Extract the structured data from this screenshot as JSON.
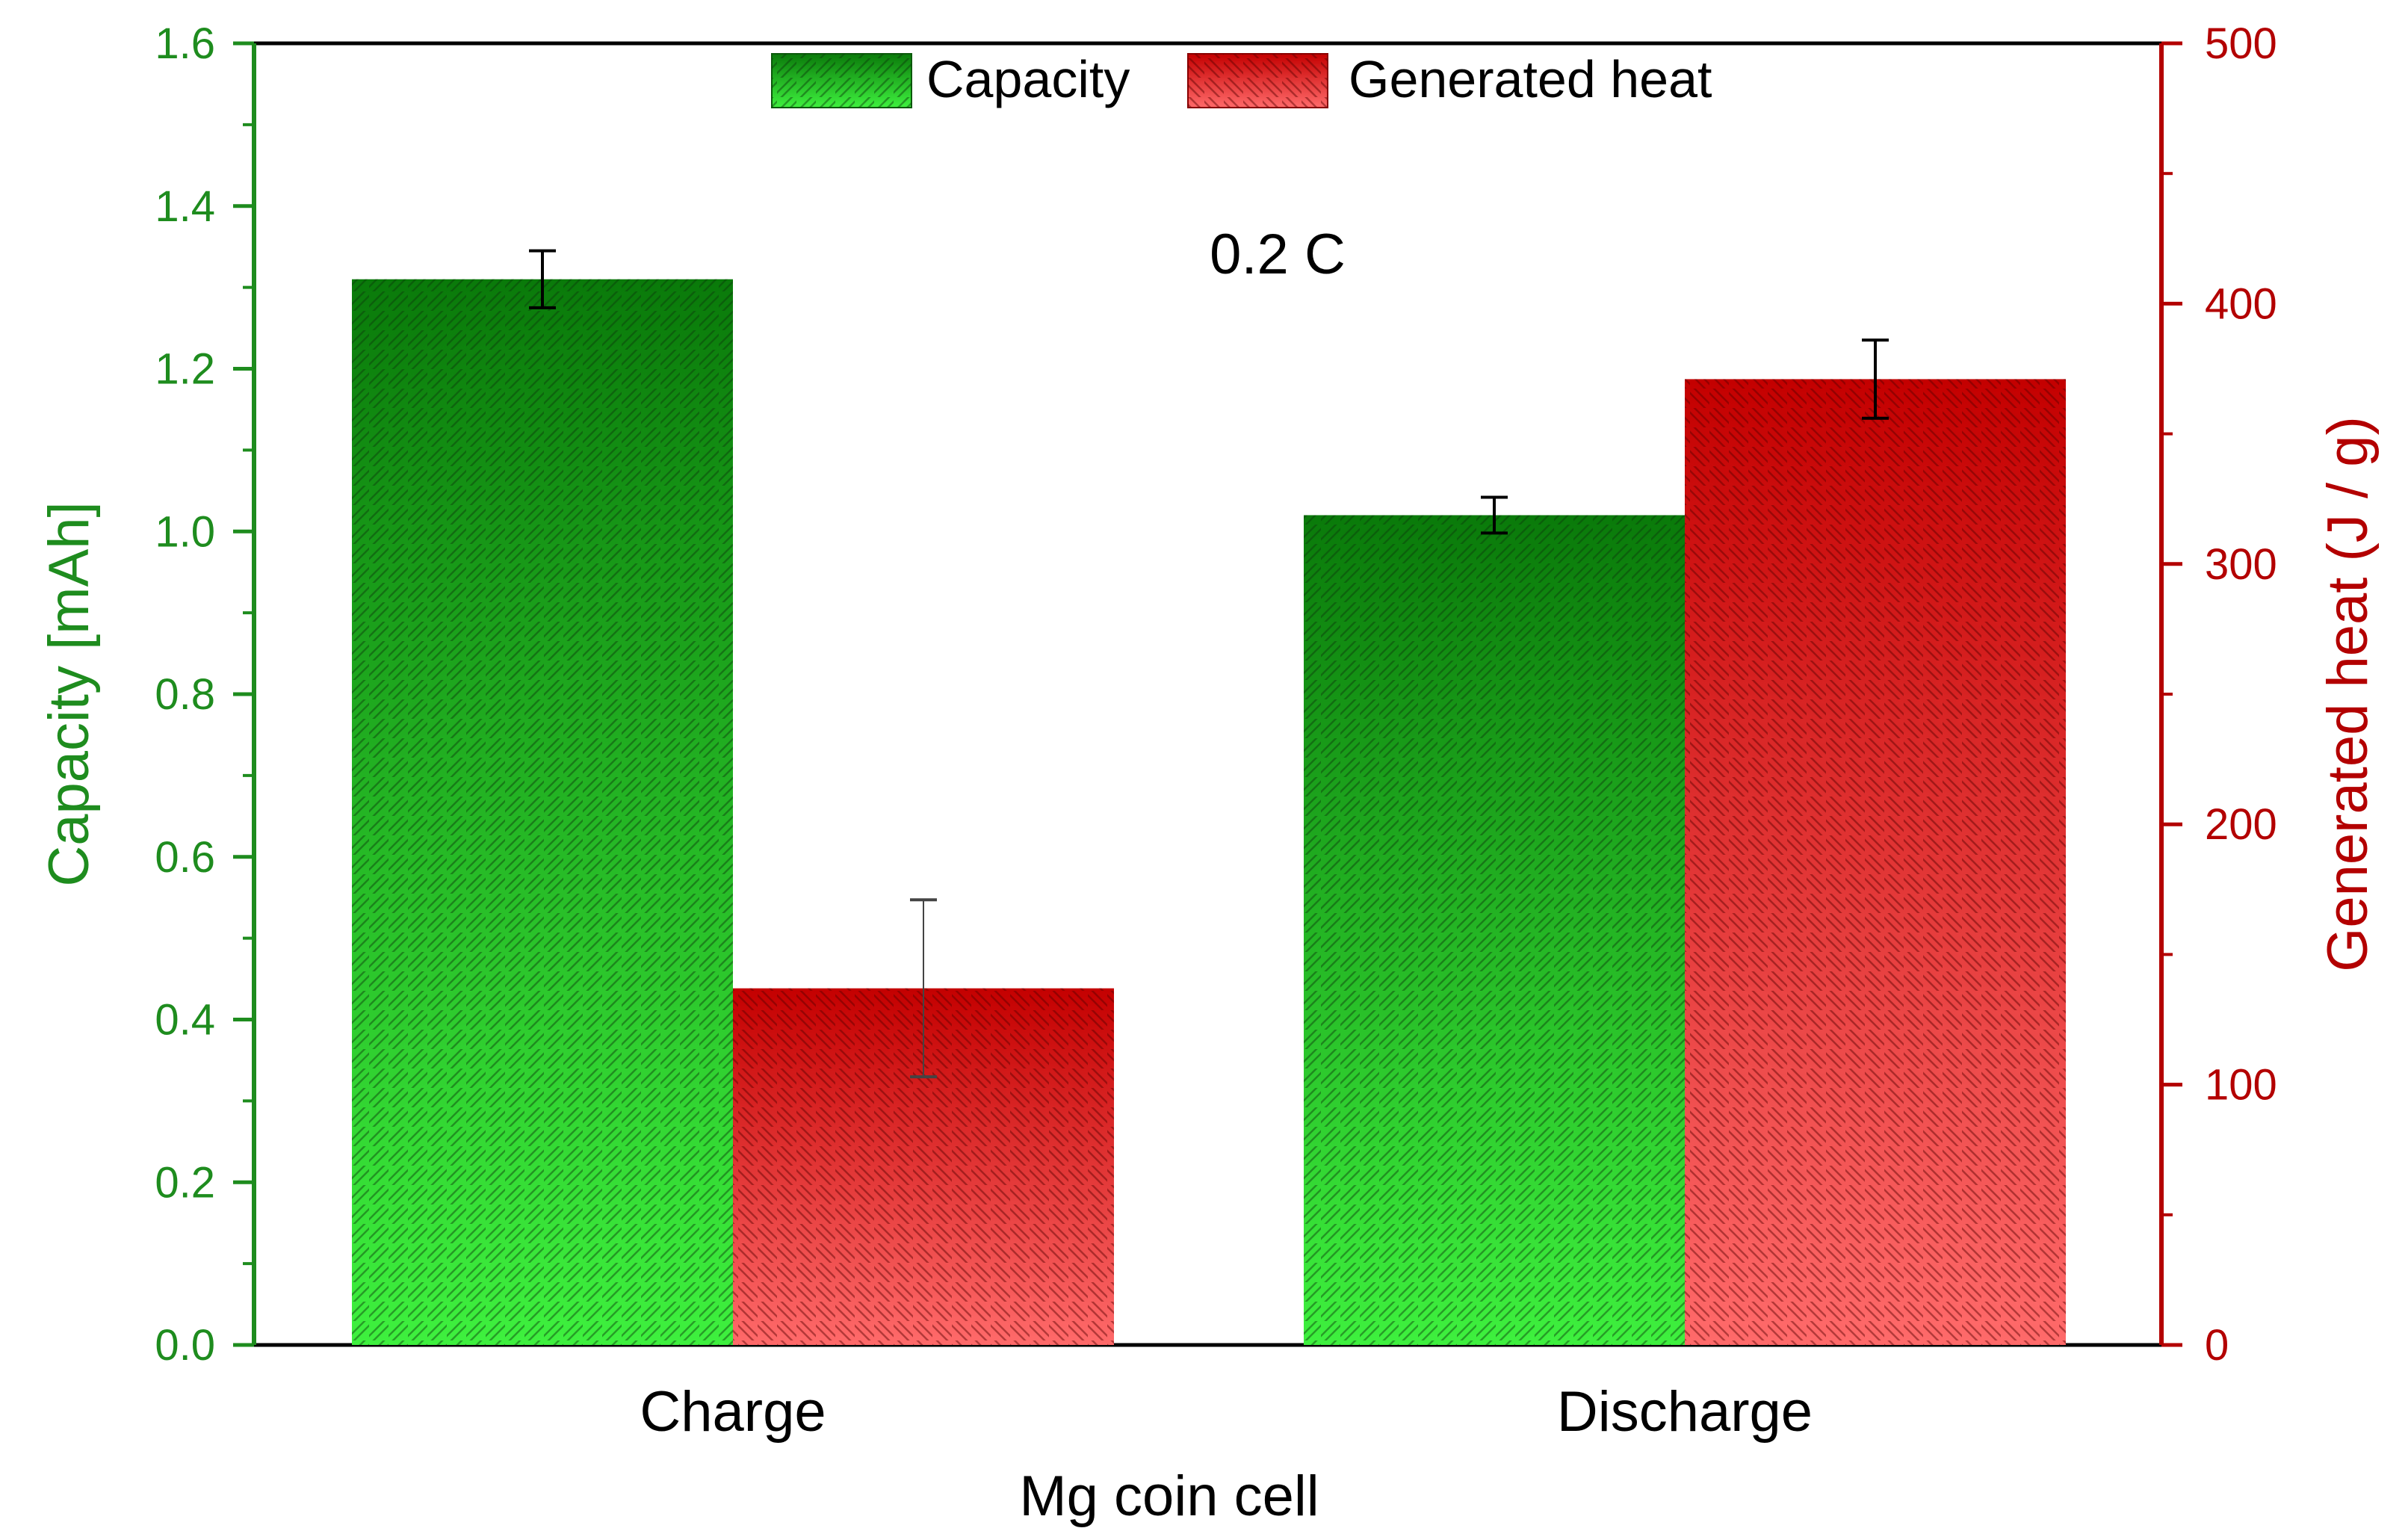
{
  "chart_data": {
    "type": "bar",
    "categories": [
      "Charge",
      "Discharge"
    ],
    "xlabel": "Mg coin cell",
    "ylabel": "Capacity [mAh]",
    "ylabel_right": "Generated heat (J / g)",
    "ylim": [
      0,
      1.6
    ],
    "ylim_right": [
      0,
      500
    ],
    "yticks": [
      "0.0",
      "0.2",
      "0.4",
      "0.6",
      "0.8",
      "1.0",
      "1.2",
      "1.4",
      "1.6"
    ],
    "yticks_right": [
      "0",
      "100",
      "200",
      "300",
      "400",
      "500"
    ],
    "annotation": "0.2 C",
    "legend_position": "top-center",
    "grid": false,
    "series": [
      {
        "name": "Capacity",
        "axis": "left",
        "values": [
          1.31,
          1.02
        ],
        "errors": [
          0.035,
          0.022
        ],
        "color_top": "#0a7a0a",
        "color_bottom": "#3ef03e"
      },
      {
        "name": "Generated heat",
        "axis": "right",
        "values": [
          137,
          371
        ],
        "errors": [
          34,
          15
        ],
        "color_top": "#c40000",
        "color_bottom": "#ff6a6a"
      }
    ],
    "colors": {
      "left_axis": "#1e8c1e",
      "right_axis": "#b30000",
      "frame": "#000000"
    }
  }
}
